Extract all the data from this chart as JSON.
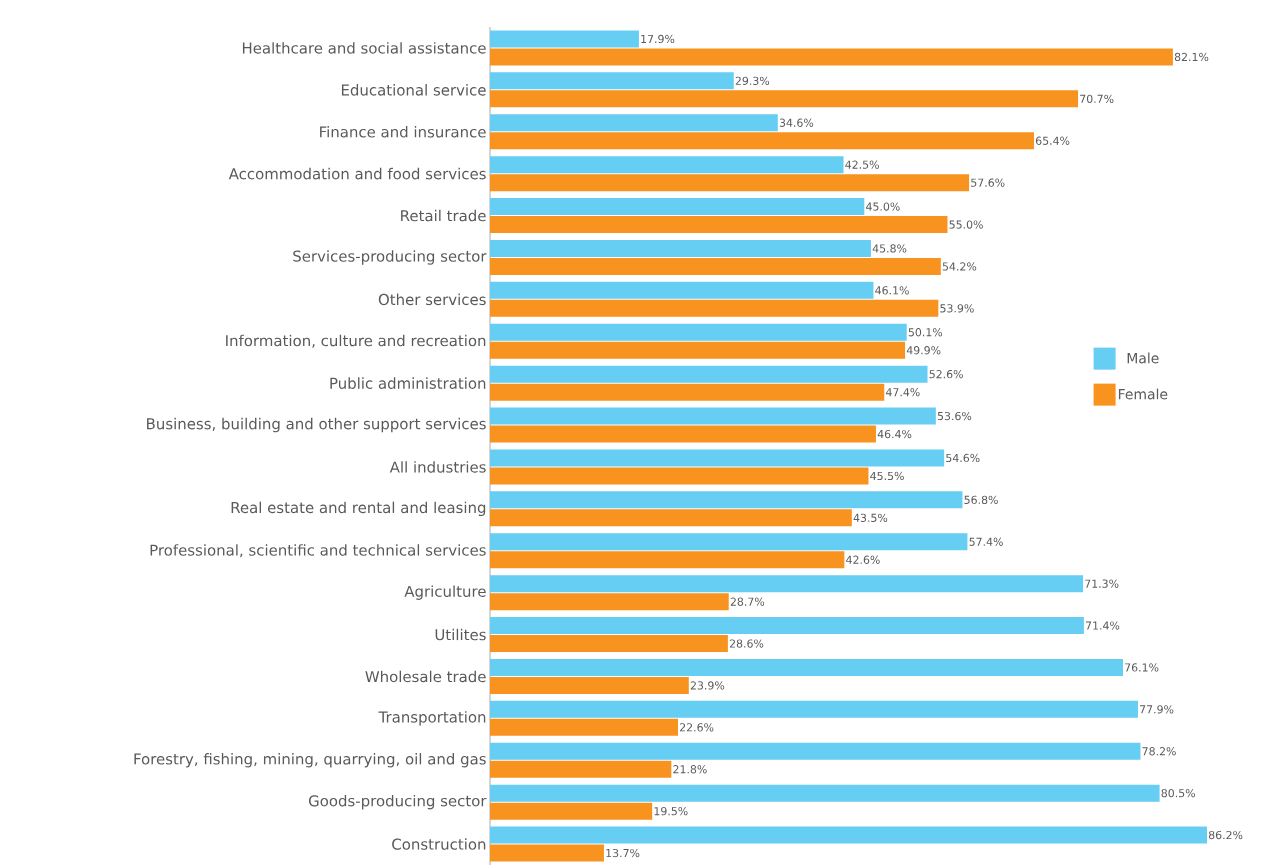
{
  "chart_data": {
    "type": "bar",
    "orientation": "horizontal",
    "legend": "right",
    "tick_labels": "y",
    "categories": [
      "Healthcare and social assistance",
      "Educational service",
      "Finance and insurance",
      "Accommodation and food services",
      "Retail trade",
      "Services-producing sector",
      "Other services",
      "Information, culture and recreation",
      "Public administration",
      "Business, building and other support services",
      "All industries",
      "Real estate and rental and leasing",
      "Professional, scientific and technical services",
      "Agriculture",
      "Utilites",
      "Wholesale trade",
      "Transportation",
      "Forestry, fishing, mining, quarrying, oil and gas",
      "Goods-producing sector",
      "Construction"
    ],
    "series": [
      {
        "name": "Male",
        "color": "#66cdf3",
        "values": [
          17.9,
          29.3,
          34.6,
          42.5,
          45.0,
          45.8,
          46.1,
          50.1,
          52.6,
          53.6,
          54.6,
          56.8,
          57.4,
          71.3,
          71.4,
          76.1,
          77.9,
          78.2,
          80.5,
          86.2
        ],
        "value_labels": [
          "17.9%",
          "29.3%",
          "34.6%",
          "42.5%",
          "45.0%",
          "45.8%",
          "46.1%",
          "50.1%",
          "52.6%",
          "53.6%",
          "54.6%",
          "56.8%",
          "57.4%",
          "71.3%",
          "71.4%",
          "76.1%",
          "77.9%",
          "78.2%",
          "80.5%",
          "86.2%"
        ]
      },
      {
        "name": "Female",
        "color": "#f7931e",
        "values": [
          82.1,
          70.7,
          65.4,
          57.6,
          55.0,
          54.2,
          53.9,
          49.9,
          47.4,
          46.4,
          45.5,
          43.5,
          42.6,
          28.7,
          28.6,
          23.9,
          22.6,
          21.8,
          19.5,
          13.7
        ],
        "value_labels": [
          "82.1%",
          "70.7%",
          "65.4%",
          "57.6%",
          "55.0%",
          "54.2%",
          "53.9%",
          "49.9%",
          "47.4%",
          "46.4%",
          "45.5%",
          "43.5%",
          "42.6%",
          "28.7%",
          "28.6%",
          "23.9%",
          "22.6%",
          "21.8%",
          "19.5%",
          "13.7%"
        ]
      }
    ]
  }
}
